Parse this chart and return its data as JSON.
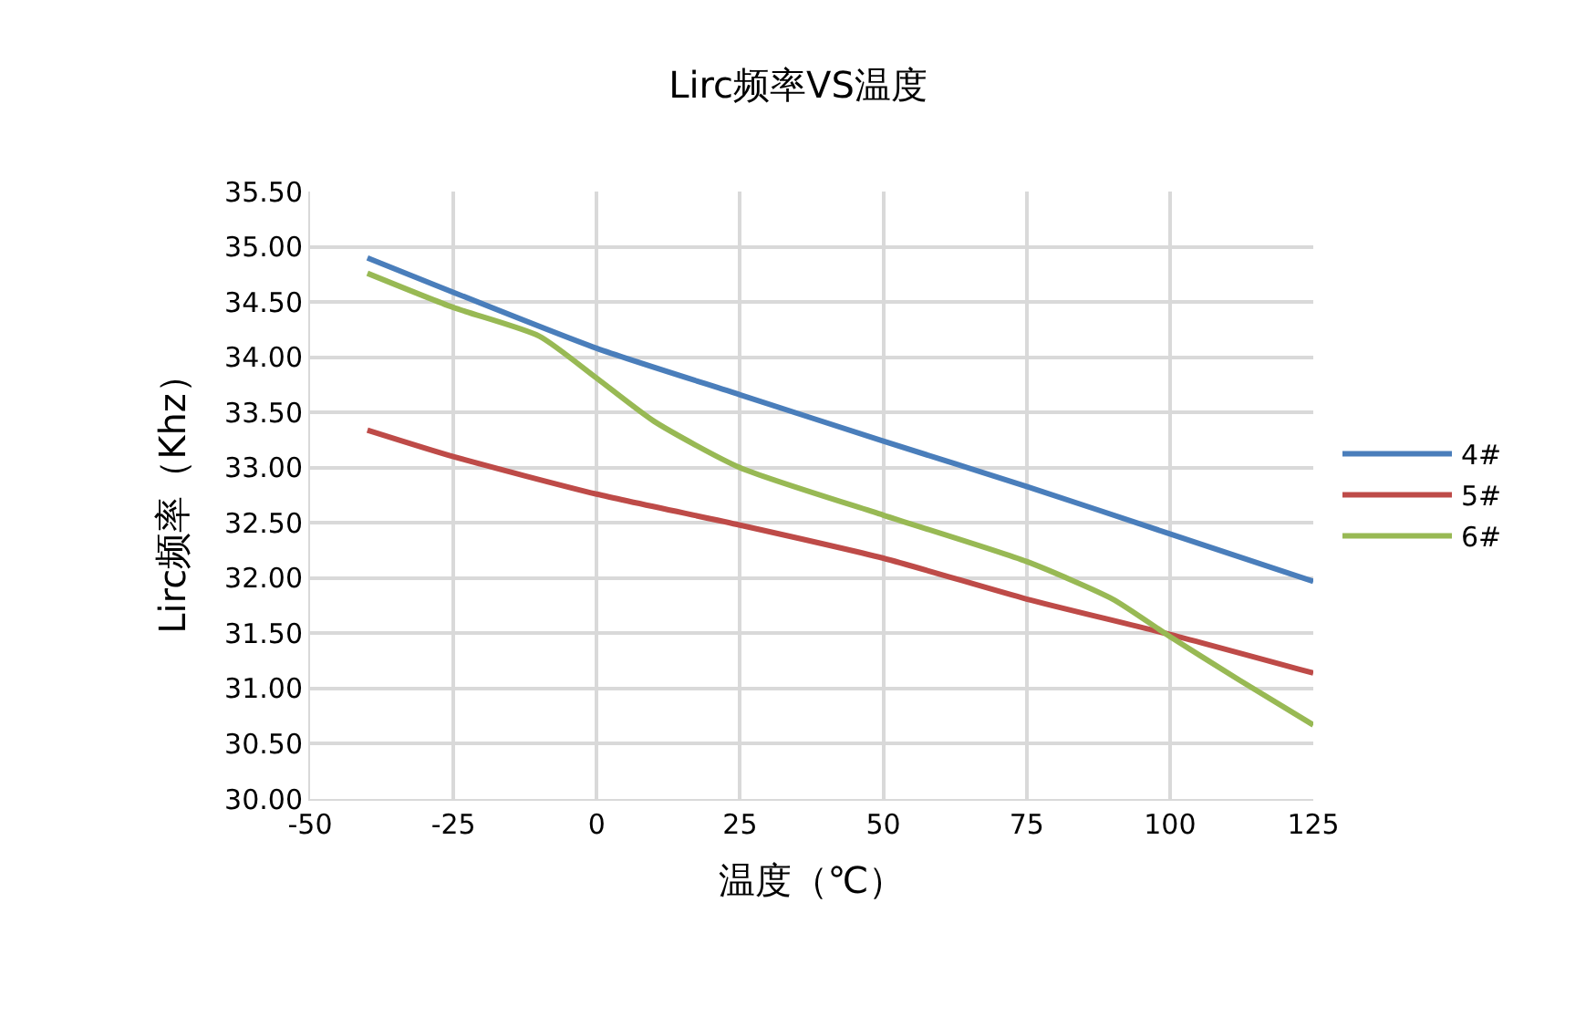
{
  "chart_data": {
    "type": "line",
    "title": "Lirc频率VS温度",
    "xlabel": "温度（℃）",
    "ylabel": "Lirc频率（Khz）",
    "xlim": [
      -50,
      125
    ],
    "xticks": [
      -50,
      -25,
      0,
      25,
      50,
      75,
      100,
      125
    ],
    "ylim": [
      30,
      35.5
    ],
    "yticks": [
      {
        "value": 30,
        "label": "30.00"
      },
      {
        "value": 30.5,
        "label": "30.50"
      },
      {
        "value": 31,
        "label": "31.00"
      },
      {
        "value": 31.5,
        "label": "31.50"
      },
      {
        "value": 32,
        "label": "32.00"
      },
      {
        "value": 32.5,
        "label": "32.50"
      },
      {
        "value": 33,
        "label": "33.00"
      },
      {
        "value": 33.5,
        "label": "33.50"
      },
      {
        "value": 34,
        "label": "34.00"
      },
      {
        "value": 34.5,
        "label": "34.50"
      },
      {
        "value": 35,
        "label": "35.00"
      },
      {
        "value": 35.5,
        "label": "35.50"
      }
    ],
    "grid": true,
    "legend": "right",
    "marker": "none",
    "line_style": "solid",
    "series": [
      {
        "name": "4#",
        "color": "#4a7ebb",
        "x": [
          -40,
          0,
          25,
          50,
          75,
          100,
          125
        ],
        "values": [
          34.9,
          34.08,
          33.66,
          33.24,
          32.83,
          32.4,
          31.97
        ]
      },
      {
        "name": "5#",
        "color": "#be4b48",
        "x": [
          -40,
          -25,
          0,
          25,
          50,
          75,
          100,
          125
        ],
        "values": [
          33.34,
          33.1,
          32.76,
          32.48,
          32.18,
          31.81,
          31.49,
          31.14
        ]
      },
      {
        "name": "6#",
        "color": "#98b954",
        "x": [
          -40,
          -25,
          -10,
          0,
          10,
          25,
          50,
          75,
          90,
          100,
          112,
          125
        ],
        "values": [
          34.76,
          34.45,
          34.19,
          33.81,
          33.42,
          33.0,
          32.57,
          32.15,
          31.81,
          31.47,
          31.08,
          30.67
        ]
      }
    ]
  }
}
